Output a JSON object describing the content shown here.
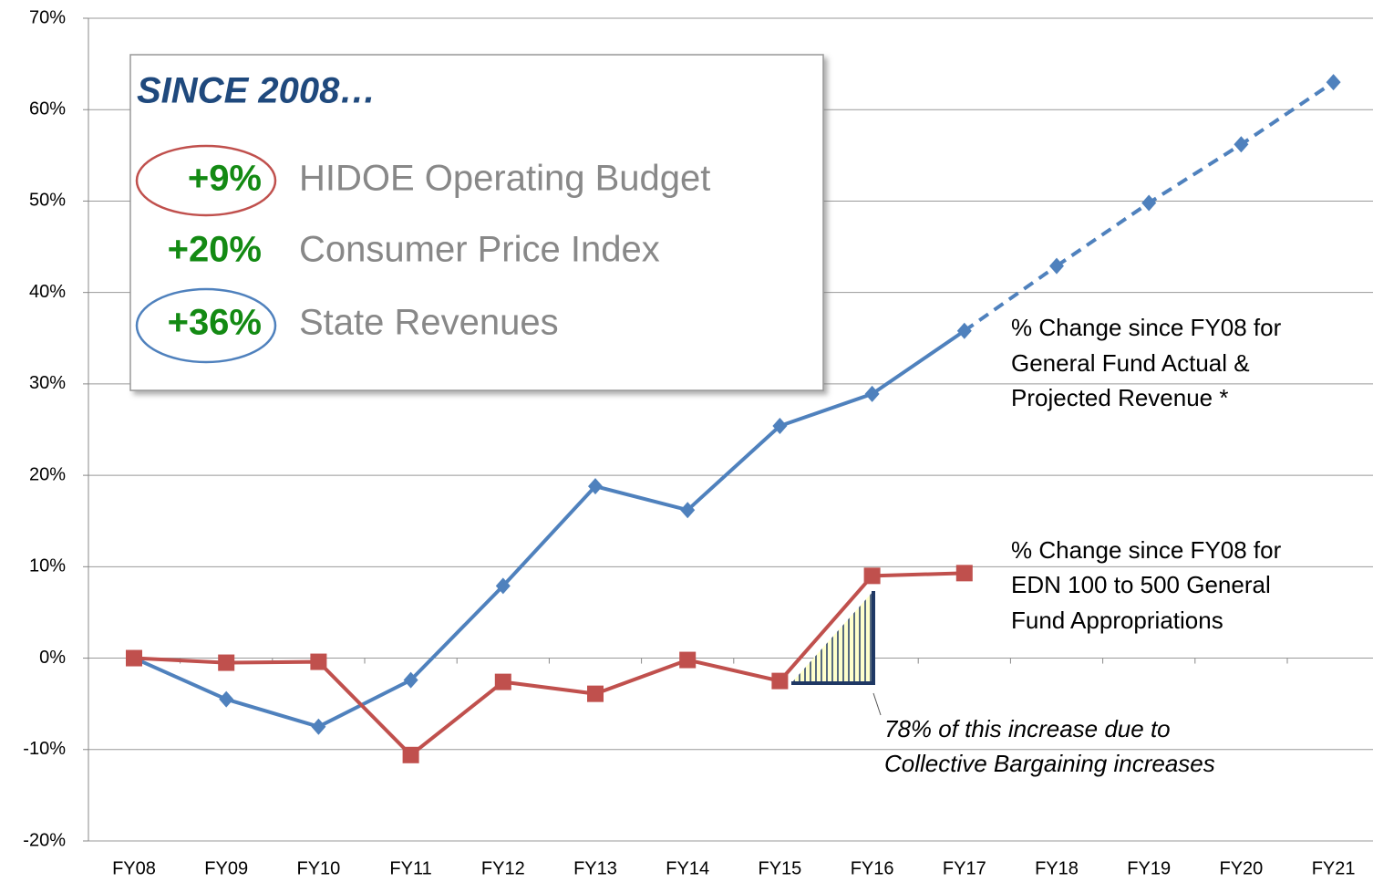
{
  "chart_data": {
    "type": "line",
    "categories": [
      "FY08",
      "FY09",
      "FY10",
      "FY11",
      "FY12",
      "FY13",
      "FY14",
      "FY15",
      "FY16",
      "FY17",
      "FY18",
      "FY19",
      "FY20",
      "FY21"
    ],
    "series": [
      {
        "color": "#4f81bd",
        "marker": "diamond",
        "style": "solid",
        "values": [
          0,
          -4.5,
          -7.5,
          -2.4,
          7.9,
          18.8,
          16.2,
          25.4,
          28.9,
          35.8,
          null,
          null,
          null,
          null
        ]
      },
      {
        "color": "#4f81bd",
        "marker": "diamond",
        "style": "dashed",
        "values": [
          null,
          null,
          null,
          null,
          null,
          null,
          null,
          null,
          null,
          null,
          42.9,
          49.8,
          56.2,
          63.0
        ]
      },
      {
        "color": "#c0504d",
        "marker": "square",
        "style": "solid",
        "values": [
          0,
          -0.5,
          -0.4,
          -10.6,
          -2.6,
          -3.9,
          -0.2,
          -2.5,
          9.0,
          9.3,
          null,
          null,
          null,
          null
        ]
      }
    ],
    "ylim": [
      -20,
      70
    ],
    "yticks": [
      {
        "value": -20,
        "label": "-20%"
      },
      {
        "value": -10,
        "label": "-10%"
      },
      {
        "value": 0,
        "label": "0%"
      },
      {
        "value": 10,
        "label": "10%"
      },
      {
        "value": 20,
        "label": "20%"
      },
      {
        "value": 30,
        "label": "30%"
      },
      {
        "value": 40,
        "label": "40%"
      },
      {
        "value": 50,
        "label": "50%"
      },
      {
        "value": 60,
        "label": "60%"
      },
      {
        "value": 70,
        "label": "70%"
      }
    ],
    "grid": true,
    "annotations": {
      "revenue": [
        "% Change since FY08 for",
        "General Fund Actual &",
        "Projected Revenue *"
      ],
      "appropriations": [
        "% Change since FY08 for",
        "EDN 100 to 500 General",
        "Fund Appropriations"
      ],
      "callout": [
        "78% of this increase due to",
        "Collective Bargaining increases"
      ]
    },
    "inset": {
      "title": "SINCE 2008…",
      "rows": [
        {
          "value": "+9%",
          "label": "HIDOE Operating Budget"
        },
        {
          "value": "+20%",
          "label": "Consumer Price Index"
        },
        {
          "value": "+36%",
          "label": "State Revenues"
        }
      ]
    }
  }
}
